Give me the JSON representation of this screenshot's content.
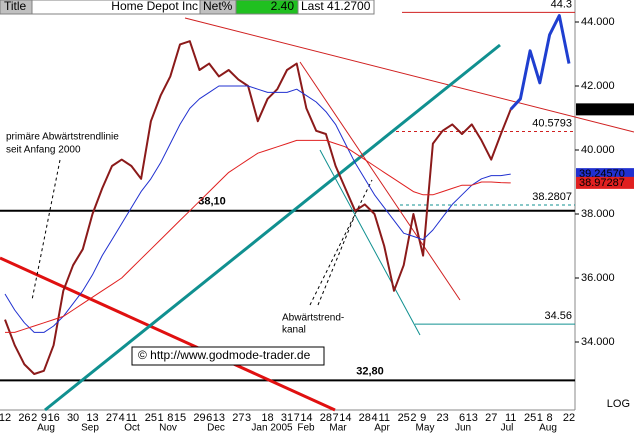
{
  "header": {
    "title_label": "Title",
    "name": "Home Depot Inc",
    "net_label": "Net%",
    "net": "2.40",
    "last": "Last 41.2700"
  },
  "chart_data": {
    "type": "line",
    "scale_label": "LOG",
    "annotations": [
      "primäre Abwärtstrendlinie",
      "seit Anfang 2000",
      "Abwärtstrend-",
      "kanal",
      "© http://www.godmode-trader.de"
    ],
    "categories": [
      "12",
      null,
      "26",
      "2",
      "9",
      "16",
      null,
      "30",
      null,
      "13",
      null,
      "27",
      "4",
      "11",
      null,
      "25",
      "1",
      "8",
      "15",
      null,
      "29",
      "6",
      "13",
      null,
      "27",
      "3",
      null,
      "18",
      null,
      "31",
      "7",
      "14",
      null,
      "28",
      "7",
      "14",
      null,
      "28",
      "4",
      "11",
      null,
      "25",
      "2",
      "9",
      null,
      "23",
      null,
      "6",
      "13",
      null,
      "27",
      null,
      "11",
      null,
      "25",
      "1",
      "8",
      null,
      "22"
    ],
    "months": [
      "Aug",
      "Sep",
      "Oct",
      "Nov",
      "Dec",
      "Jan 2005",
      "Feb",
      "Mar",
      "Apr",
      "May",
      "Jun",
      "Jul",
      "Aug"
    ],
    "ylim": [
      31.875,
      44.6875
    ],
    "yticks": [
      {
        "value": 34,
        "label": "34.000"
      },
      {
        "value": 36,
        "label": "36.000"
      },
      {
        "value": 38,
        "label": "38.000"
      },
      {
        "value": 40,
        "label": "40.000"
      },
      {
        "value": 42,
        "label": "42.000"
      },
      {
        "value": 44,
        "label": "44.000"
      }
    ],
    "series": [
      {
        "color": "#8b1a1a",
        "values": [
          34.7,
          33.9,
          33.3,
          33.0,
          33.1,
          33.9,
          35.6,
          36.4,
          36.9,
          38.0,
          38.8,
          39.5,
          39.7,
          39.5,
          39.1,
          40.9,
          41.7,
          42.3,
          43.3,
          43.4,
          42.5,
          42.7,
          42.3,
          42.5,
          42.2,
          42.0,
          40.9,
          41.6,
          41.9,
          42.5,
          42.7,
          41.3,
          40.6,
          40.5,
          39.5,
          38.8,
          38.1,
          38.3,
          38.0,
          37.0,
          35.6,
          36.4,
          38.0,
          36.7,
          40.2,
          40.6,
          40.8,
          40.5,
          40.8,
          40.3,
          39.7,
          40.5,
          41.27,
          null,
          null,
          null,
          null,
          null,
          null
        ],
        "value_labels": [
          null,
          null,
          null,
          null,
          null,
          null,
          null,
          null,
          null,
          null,
          null,
          null,
          null,
          null,
          null,
          null,
          null,
          null,
          null,
          null,
          null,
          null,
          null,
          null,
          null,
          null,
          null,
          null,
          null,
          null,
          null,
          null,
          null,
          null,
          null,
          null,
          null,
          null,
          null,
          null,
          null,
          null,
          null,
          null,
          null,
          null,
          null,
          null,
          null,
          null,
          null,
          null,
          "41.2700",
          null,
          null,
          null,
          null,
          null,
          null
        ]
      },
      {
        "color": "#2030d0",
        "values": [
          35.5,
          35.0,
          34.6,
          34.3,
          34.3,
          34.5,
          34.8,
          35.2,
          35.6,
          36.1,
          36.7,
          37.2,
          37.7,
          38.2,
          38.7,
          39.1,
          39.6,
          40.2,
          40.8,
          41.3,
          41.6,
          41.8,
          42.0,
          42.0,
          42.0,
          42.0,
          41.9,
          41.8,
          41.8,
          41.8,
          41.9,
          41.7,
          41.5,
          41.2,
          40.8,
          40.2,
          39.6,
          39.1,
          38.6,
          38.2,
          37.8,
          37.4,
          37.3,
          37.2,
          37.5,
          37.9,
          38.3,
          38.6,
          38.9,
          39.1,
          39.2,
          39.2,
          39.2457,
          null,
          null,
          null,
          null,
          null,
          null
        ],
        "value_labels": [
          null,
          null,
          null,
          null,
          null,
          null,
          null,
          null,
          null,
          null,
          null,
          null,
          null,
          null,
          null,
          null,
          null,
          null,
          null,
          null,
          null,
          null,
          null,
          null,
          null,
          null,
          null,
          null,
          null,
          null,
          null,
          null,
          null,
          null,
          null,
          null,
          null,
          null,
          null,
          null,
          null,
          null,
          null,
          null,
          null,
          null,
          null,
          null,
          null,
          null,
          null,
          null,
          "39.24570",
          null,
          null,
          null,
          null,
          null,
          null
        ]
      },
      {
        "color": "#e02020",
        "values": [
          34.3,
          34.3,
          34.4,
          34.5,
          34.6,
          34.7,
          34.8,
          35.0,
          35.2,
          35.4,
          35.6,
          35.8,
          36.0,
          36.3,
          36.6,
          36.9,
          37.2,
          37.5,
          37.8,
          38.1,
          38.4,
          38.7,
          39.0,
          39.3,
          39.5,
          39.7,
          39.9,
          40.0,
          40.1,
          40.2,
          40.3,
          40.3,
          40.3,
          40.3,
          40.2,
          40.1,
          39.9,
          39.7,
          39.5,
          39.3,
          39.1,
          38.9,
          38.7,
          38.6,
          38.6,
          38.7,
          38.8,
          38.9,
          38.9,
          39.0,
          39.0,
          38.98,
          38.97287,
          null,
          null,
          null,
          null,
          null,
          null
        ],
        "value_labels": [
          null,
          null,
          null,
          null,
          null,
          null,
          null,
          null,
          null,
          null,
          null,
          null,
          null,
          null,
          null,
          null,
          null,
          null,
          null,
          null,
          null,
          null,
          null,
          null,
          null,
          null,
          null,
          null,
          null,
          null,
          null,
          null,
          null,
          null,
          null,
          null,
          null,
          null,
          null,
          null,
          null,
          null,
          null,
          null,
          null,
          null,
          null,
          null,
          null,
          null,
          null,
          null,
          "38.97287",
          null,
          null,
          null,
          null,
          null,
          null
        ]
      },
      {
        "color": "#1f3fd0",
        "values": [
          null,
          null,
          null,
          null,
          null,
          null,
          null,
          null,
          null,
          null,
          null,
          null,
          null,
          null,
          null,
          null,
          null,
          null,
          null,
          null,
          null,
          null,
          null,
          null,
          null,
          null,
          null,
          null,
          null,
          null,
          null,
          null,
          null,
          null,
          null,
          null,
          null,
          null,
          null,
          null,
          null,
          null,
          null,
          null,
          null,
          null,
          null,
          null,
          null,
          null,
          null,
          null,
          41.27,
          41.6,
          43.1,
          42.1,
          43.6,
          44.2,
          42.7
        ]
      }
    ],
    "levels": [
      {
        "value": 44.3,
        "color": "#d02020"
      },
      {
        "value": 40.5793,
        "color": "#d02020"
      },
      {
        "value": 38.2807,
        "color": "#109090"
      },
      {
        "value": 34.56,
        "color": "#109090"
      },
      {
        "value": 38.1,
        "label": "38,10",
        "color": "#000000"
      },
      {
        "value": 32.8,
        "label": "32,80",
        "color": "#000000"
      }
    ]
  }
}
